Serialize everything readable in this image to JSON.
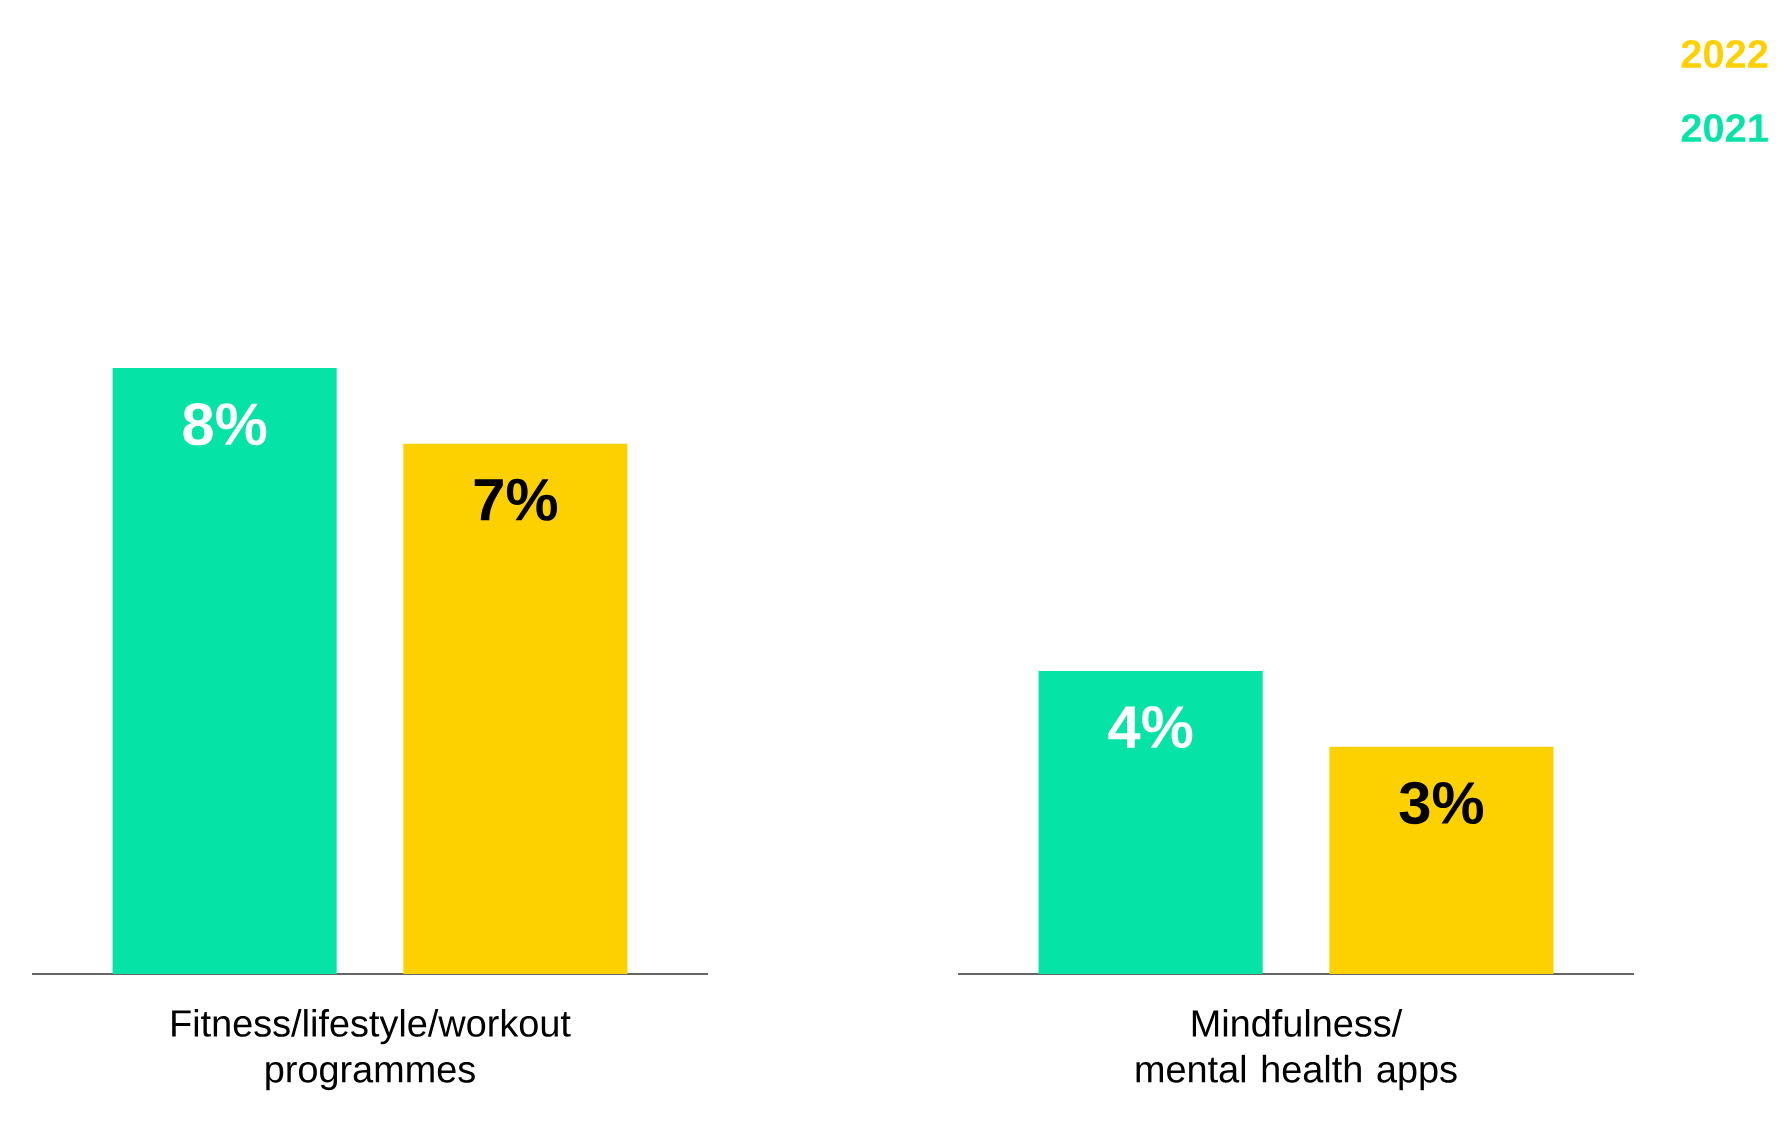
{
  "chart_data": {
    "type": "bar",
    "categories": [
      "Fitness/lifestyle/workout programmes",
      "Mindfulness/ mental health apps"
    ],
    "series": [
      {
        "name": "2021",
        "color": "#06e3a6",
        "values": [
          8,
          4
        ],
        "value_labels": [
          "8%",
          "4%"
        ]
      },
      {
        "name": "2022",
        "color": "#fdd000",
        "values": [
          7,
          3
        ],
        "value_labels": [
          "7%",
          "3%"
        ]
      }
    ],
    "legend": "top right"
  }
}
